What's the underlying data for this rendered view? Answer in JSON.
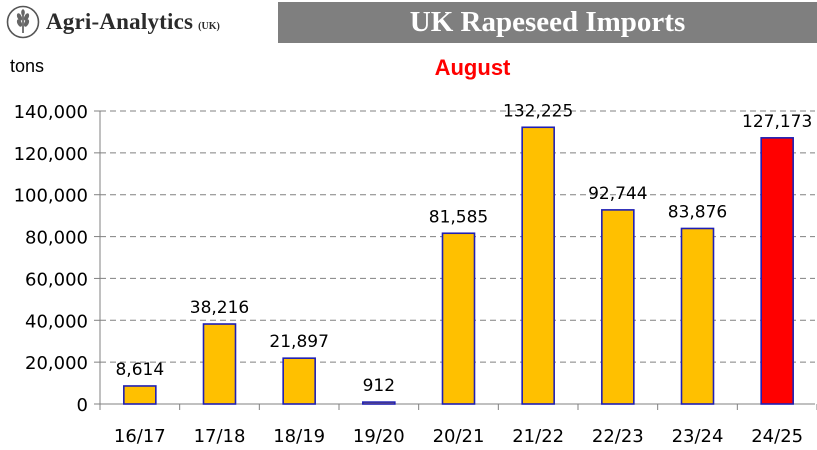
{
  "brand": {
    "name": "Agri-Analytics",
    "region": "(UK)",
    "logo_icon": "wheat-icon"
  },
  "chart_data": {
    "type": "bar",
    "title": "UK Rapeseed Imports",
    "subtitle": "August",
    "ylabel": "tons",
    "categories": [
      "16/17",
      "17/18",
      "18/19",
      "19/20",
      "20/21",
      "21/22",
      "22/23",
      "23/24",
      "24/25"
    ],
    "values": [
      8614,
      38216,
      21897,
      912,
      81585,
      132225,
      92744,
      83876,
      127173
    ],
    "data_labels": [
      "8,614",
      "38,216",
      "21,897",
      "912",
      "81,585",
      "132,225",
      "92,744",
      "83,876",
      "127,173"
    ],
    "y_ticks": [
      0,
      20000,
      40000,
      60000,
      80000,
      100000,
      120000,
      140000
    ],
    "y_tick_labels": [
      "0",
      "20,000",
      "40,000",
      "60,000",
      "80,000",
      "100,000",
      "120,000",
      "140,000"
    ],
    "ylim": [
      0,
      140000
    ],
    "grid": true,
    "colors": {
      "bar": "#ffc000",
      "highlight": "#ff0000",
      "outline": "#1f1fb4",
      "grid": "#808080"
    },
    "highlight_index": 8
  }
}
